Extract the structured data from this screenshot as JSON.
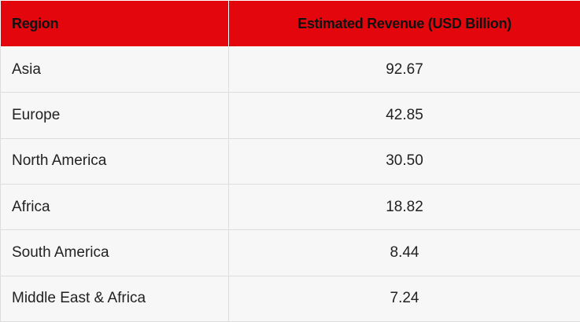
{
  "chart_data": {
    "type": "table",
    "columns": [
      "Region",
      "Estimated Revenue (USD Billion)"
    ],
    "rows": [
      {
        "region": "Asia",
        "value": "92.67"
      },
      {
        "region": "Europe",
        "value": "42.85"
      },
      {
        "region": "North America",
        "value": "30.50"
      },
      {
        "region": "Africa",
        "value": "18.82"
      },
      {
        "region": "South America",
        "value": "8.44"
      },
      {
        "region": "Middle East & Africa",
        "value": "7.24"
      }
    ]
  },
  "colors": {
    "header_bg": "#e3060c",
    "row_bg": "#f7f7f7",
    "border": "#dddddd"
  }
}
